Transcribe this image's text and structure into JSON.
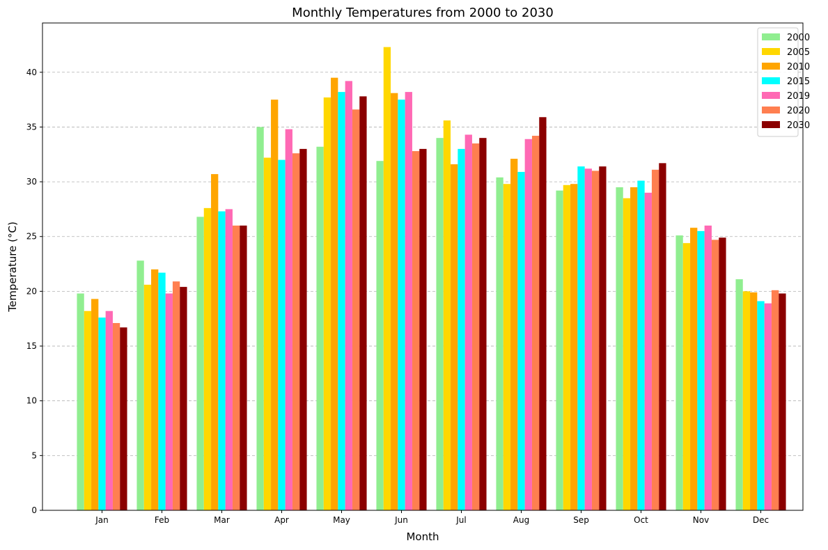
{
  "chart_data": {
    "type": "bar",
    "title": "Monthly Temperatures from 2000 to 2030",
    "xlabel": "Month",
    "ylabel": "Temperature (°C)",
    "ylim": [
      0,
      44.5
    ],
    "yticks": [
      0,
      5,
      10,
      15,
      20,
      25,
      30,
      35,
      40
    ],
    "grid": "y-dashed",
    "legend_position": "top-right",
    "categories": [
      "Jan",
      "Feb",
      "Mar",
      "Apr",
      "May",
      "Jun",
      "Jul",
      "Aug",
      "Sep",
      "Oct",
      "Nov",
      "Dec"
    ],
    "series": [
      {
        "name": "2000",
        "color": "#90ee90",
        "values": [
          19.8,
          22.8,
          26.8,
          35.0,
          33.2,
          31.9,
          34.0,
          30.4,
          29.2,
          29.5,
          25.1,
          21.1
        ]
      },
      {
        "name": "2005",
        "color": "#ffd700",
        "values": [
          18.2,
          20.6,
          27.6,
          32.2,
          37.7,
          42.3,
          35.6,
          29.8,
          29.7,
          28.5,
          24.4,
          20.0
        ]
      },
      {
        "name": "2010",
        "color": "#ffa500",
        "values": [
          19.3,
          22.0,
          30.7,
          37.5,
          39.5,
          38.1,
          31.6,
          32.1,
          29.8,
          29.5,
          25.8,
          19.9
        ]
      },
      {
        "name": "2015",
        "color": "#00ffff",
        "values": [
          17.6,
          21.7,
          27.3,
          32.0,
          38.2,
          37.5,
          33.0,
          30.9,
          31.4,
          30.1,
          25.5,
          19.1
        ]
      },
      {
        "name": "2019",
        "color": "#ff69b4",
        "values": [
          18.2,
          19.8,
          27.5,
          34.8,
          39.2,
          38.2,
          34.3,
          33.9,
          31.2,
          29.0,
          26.0,
          18.9
        ]
      },
      {
        "name": "2020",
        "color": "#ff7f50",
        "values": [
          17.1,
          20.9,
          26.0,
          32.6,
          36.6,
          32.8,
          33.5,
          34.2,
          31.0,
          31.1,
          24.7,
          20.1
        ]
      },
      {
        "name": "2030",
        "color": "#8b0000",
        "values": [
          16.7,
          20.4,
          26.0,
          33.0,
          37.8,
          33.0,
          34.0,
          35.9,
          31.4,
          31.7,
          24.9,
          19.8
        ]
      }
    ]
  }
}
